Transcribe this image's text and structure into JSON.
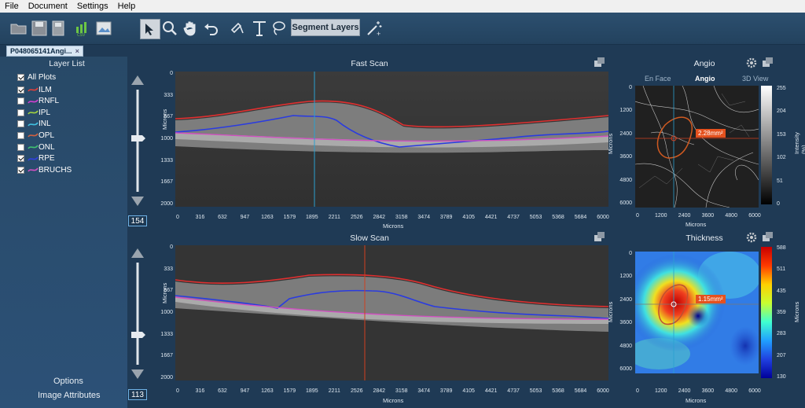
{
  "menu": [
    "File",
    "Document",
    "Settings",
    "Help"
  ],
  "toolbar": {
    "icons": [
      "open-folder-icon",
      "save-icon",
      "save-as-icon",
      "csv-export-icon",
      "image-export-icon",
      "select-pointer-icon",
      "zoom-icon",
      "pan-hand-icon",
      "undo-icon",
      "pen-icon",
      "text-icon",
      "lasso-icon",
      "magic-wand-icon"
    ],
    "segment_label": "Segment Layers"
  },
  "document_tab": {
    "label": "P048065141Angi...",
    "close": "×"
  },
  "layer_list": {
    "title": "Layer List",
    "all_label": "All Plots",
    "all_checked": true,
    "items": [
      {
        "label": "ILM",
        "checked": true,
        "color": "#e0403a"
      },
      {
        "label": "RNFL",
        "checked": false,
        "color": "#d040d0"
      },
      {
        "label": "IPL",
        "checked": false,
        "color": "#a0d040"
      },
      {
        "label": "INL",
        "checked": false,
        "color": "#40c0e0"
      },
      {
        "label": "OPL",
        "checked": false,
        "color": "#d06040"
      },
      {
        "label": "ONL",
        "checked": false,
        "color": "#40c070"
      },
      {
        "label": "RPE",
        "checked": true,
        "color": "#3040e0"
      },
      {
        "label": "BRUCHS",
        "checked": true,
        "color": "#d050c0"
      }
    ]
  },
  "sliders": {
    "top_value": "154",
    "bottom_value": "113"
  },
  "side_buttons": {
    "options": "Options",
    "attributes": "Image Attributes"
  },
  "fast_scan": {
    "title": "Fast Scan",
    "y_ticks": [
      "0",
      "333",
      "667",
      "1000",
      "1333",
      "1667",
      "2000"
    ],
    "y_label": "Microns",
    "x_ticks": [
      "0",
      "316",
      "632",
      "947",
      "1263",
      "1579",
      "1895",
      "2211",
      "2526",
      "2842",
      "3158",
      "3474",
      "3789",
      "4105",
      "4421",
      "4737",
      "5053",
      "5368",
      "5684",
      "6000"
    ],
    "x_label": "Microns"
  },
  "slow_scan": {
    "title": "Slow Scan",
    "y_ticks": [
      "0",
      "333",
      "667",
      "1000",
      "1333",
      "1667",
      "2000"
    ],
    "y_label": "Microns",
    "x_ticks": [
      "0",
      "316",
      "632",
      "947",
      "1263",
      "1579",
      "1895",
      "2211",
      "2526",
      "2842",
      "3158",
      "3474",
      "3789",
      "4105",
      "4421",
      "4737",
      "5053",
      "5368",
      "5684",
      "6000"
    ],
    "x_label": "Microns"
  },
  "angio": {
    "title": "Angio",
    "tabs": [
      "En Face",
      "Angio",
      "3D View"
    ],
    "active_tab": "Angio",
    "x_ticks": [
      "0",
      "1200",
      "2400",
      "3600",
      "4800",
      "6000"
    ],
    "y_ticks": [
      "0",
      "1200",
      "2400",
      "3600",
      "4800",
      "6000"
    ],
    "x_label": "Microns",
    "y_label": "Microns",
    "colorbar_ticks": [
      "255",
      "204",
      "153",
      "102",
      "51",
      "0"
    ],
    "colorbar_label": "Intensity (%)",
    "area_label": "2.28mm²"
  },
  "thickness": {
    "title": "Thickness",
    "x_ticks": [
      "0",
      "1200",
      "2400",
      "3600",
      "4800",
      "6000"
    ],
    "y_ticks": [
      "0",
      "1200",
      "2400",
      "3600",
      "4800",
      "6000"
    ],
    "x_label": "Microns",
    "y_label": "Microns",
    "colorbar_ticks": [
      "588",
      "511",
      "435",
      "359",
      "283",
      "207",
      "130"
    ],
    "colorbar_label": "Microns",
    "area_label": "1.15mm²"
  }
}
